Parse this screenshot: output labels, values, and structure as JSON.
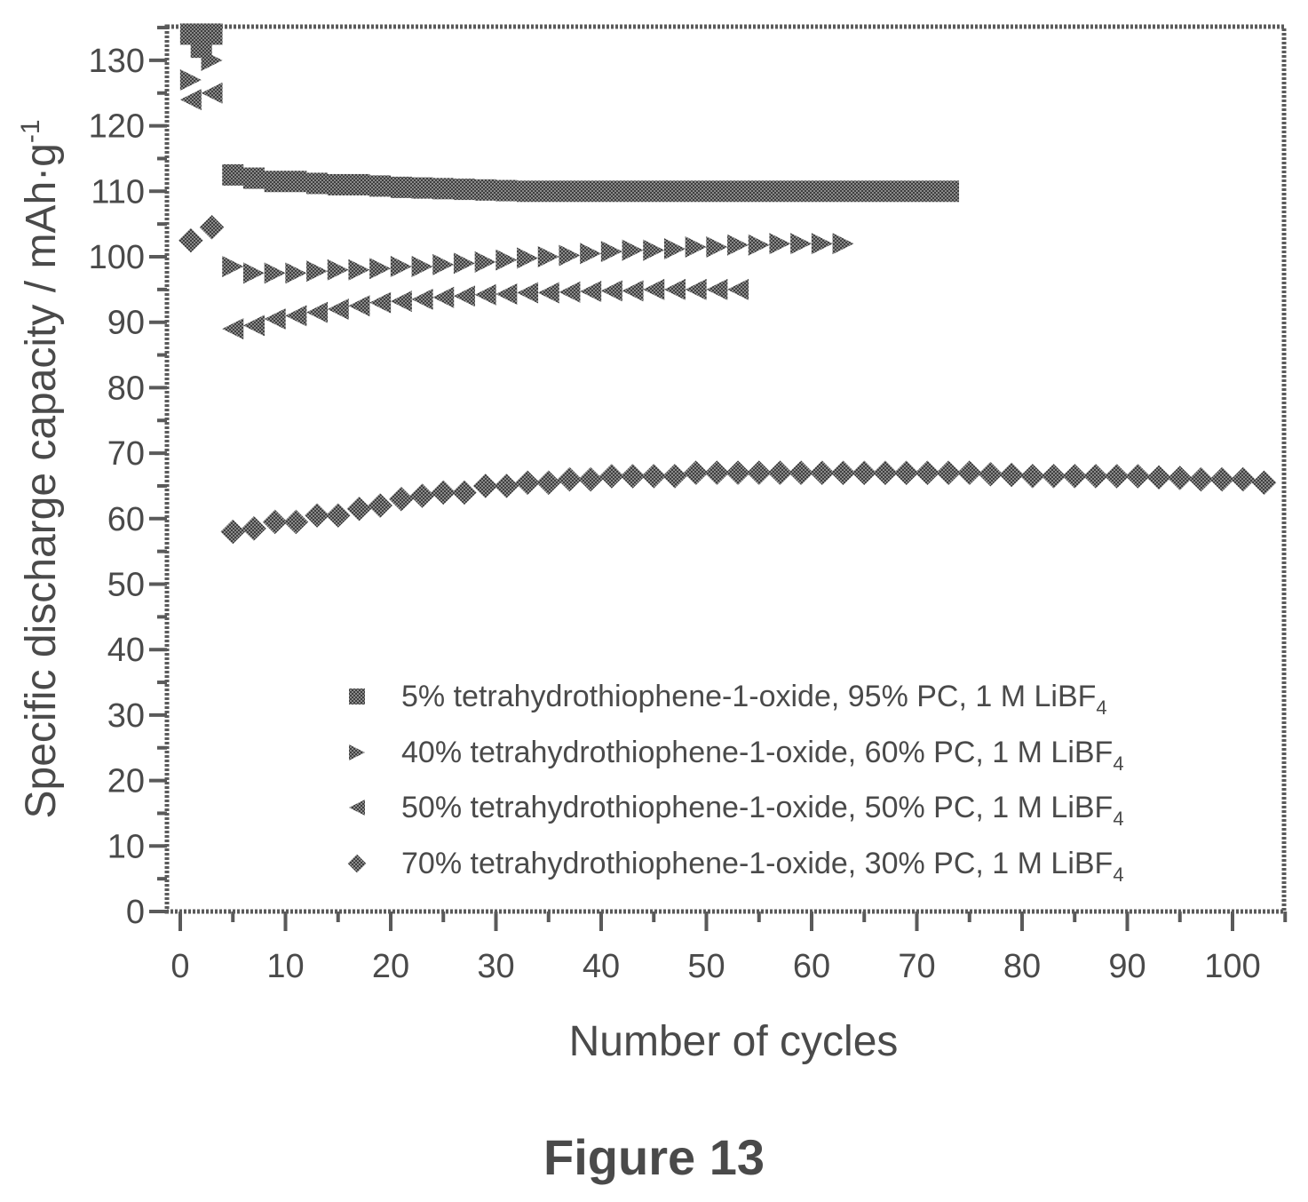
{
  "caption": "Figure 13",
  "chart_data": {
    "type": "scatter",
    "xlabel": "Number of cycles",
    "ylabel_main": "Specific discharge capacity / mAh·g",
    "ylabel_sup": "-1",
    "xlim": [
      0,
      105
    ],
    "ylim": [
      0,
      135
    ],
    "xticks": [
      0,
      10,
      20,
      30,
      40,
      50,
      60,
      70,
      80,
      90,
      100
    ],
    "yticks": [
      0,
      10,
      20,
      30,
      40,
      50,
      60,
      70,
      80,
      90,
      100,
      110,
      120,
      130
    ],
    "grid": false,
    "legend_position": "bottom-right",
    "series": [
      {
        "name_main": "5% tetrahydrothiophene-1-oxide, 95% PC, 1 M LiBF",
        "name_sub": "4",
        "marker": "square",
        "color": "#6b6b6b",
        "x": [
          1,
          2,
          3,
          5,
          7,
          9,
          11,
          13,
          15,
          17,
          19,
          21,
          23,
          25,
          27,
          29,
          31,
          33,
          35,
          37,
          39,
          41,
          43,
          45,
          47,
          49,
          51,
          53,
          55,
          57,
          59,
          61,
          63,
          65,
          67,
          69,
          71,
          73
        ],
        "y": [
          134,
          132,
          134,
          112.5,
          112,
          111.5,
          111.5,
          111.2,
          111,
          111,
          110.8,
          110.6,
          110.5,
          110.4,
          110.3,
          110.2,
          110.1,
          110,
          110,
          110,
          110,
          110,
          110,
          110,
          110,
          110,
          110,
          110,
          110,
          110,
          110,
          110,
          110,
          110,
          110,
          110,
          110,
          110
        ]
      },
      {
        "name_main": "40% tetrahydrothiophene-1-oxide, 60% PC, 1 M LiBF",
        "name_sub": "4",
        "marker": "triangle-right",
        "color": "#6b6b6b",
        "x": [
          1,
          3,
          5,
          7,
          9,
          11,
          13,
          15,
          17,
          19,
          21,
          23,
          25,
          27,
          29,
          31,
          33,
          35,
          37,
          39,
          41,
          43,
          45,
          47,
          49,
          51,
          53,
          55,
          57,
          59,
          61,
          63
        ],
        "y": [
          127,
          130,
          98.5,
          97.5,
          97.5,
          97.5,
          97.8,
          98,
          98,
          98.2,
          98.5,
          98.5,
          98.8,
          99,
          99.2,
          99.5,
          99.8,
          100,
          100.2,
          100.5,
          100.8,
          101,
          101,
          101.2,
          101.5,
          101.5,
          101.8,
          101.8,
          102,
          102,
          102,
          102
        ]
      },
      {
        "name_main": "50% tetrahydrothiophene-1-oxide, 50% PC, 1 M LiBF",
        "name_sub": "4",
        "marker": "triangle-left",
        "color": "#6b6b6b",
        "x": [
          1,
          3,
          5,
          7,
          9,
          11,
          13,
          15,
          17,
          19,
          21,
          23,
          25,
          27,
          29,
          31,
          33,
          35,
          37,
          39,
          41,
          43,
          45,
          47,
          49,
          51,
          53
        ],
        "y": [
          124,
          125,
          89,
          89.5,
          90.5,
          91,
          91.5,
          92,
          92.5,
          93,
          93.2,
          93.5,
          93.8,
          94,
          94.2,
          94.3,
          94.5,
          94.5,
          94.6,
          94.7,
          94.8,
          94.8,
          95,
          95,
          95,
          95,
          95
        ]
      },
      {
        "name_main": "70% tetrahydrothiophene-1-oxide, 30% PC, 1 M LiBF",
        "name_sub": "4",
        "marker": "diamond",
        "color": "#6b6b6b",
        "x": [
          1,
          3,
          5,
          7,
          9,
          11,
          13,
          15,
          17,
          19,
          21,
          23,
          25,
          27,
          29,
          31,
          33,
          35,
          37,
          39,
          41,
          43,
          45,
          47,
          49,
          51,
          53,
          55,
          57,
          59,
          61,
          63,
          65,
          67,
          69,
          71,
          73,
          75,
          77,
          79,
          81,
          83,
          85,
          87,
          89,
          91,
          93,
          95,
          97,
          99,
          101,
          103
        ],
        "y": [
          102.5,
          104.5,
          58,
          58.5,
          59.5,
          59.5,
          60.5,
          60.5,
          61.5,
          62,
          63,
          63.5,
          64,
          64,
          65,
          65,
          65.5,
          65.5,
          66,
          66,
          66.5,
          66.5,
          66.5,
          66.5,
          67,
          67,
          67,
          67,
          67,
          67,
          67,
          67,
          67,
          67,
          67,
          67,
          67,
          67,
          66.8,
          66.7,
          66.5,
          66.5,
          66.5,
          66.5,
          66.5,
          66.5,
          66.3,
          66.2,
          66,
          66,
          66,
          65.5
        ]
      }
    ]
  }
}
